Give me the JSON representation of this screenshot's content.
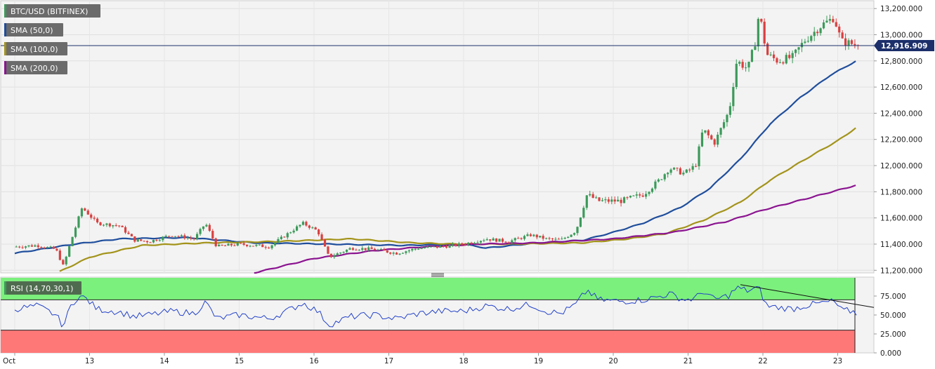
{
  "chart_data": [
    {
      "type": "candlestick",
      "panel": "price",
      "symbol_label": "BTC/USD (BITFINEX)",
      "indicators": [
        {
          "label": "SMA (50,0)",
          "color": "#1f4e9c"
        },
        {
          "label": "SMA (100,0)",
          "color": "#a3931a"
        },
        {
          "label": "SMA (200,0)",
          "color": "#8b1490"
        }
      ],
      "last_price": 12916.909,
      "last_price_label": "12,916.909",
      "y_ticks": [
        "11,200.000",
        "11,400.000",
        "11,600.000",
        "11,800.000",
        "12,000.000",
        "12,200.000",
        "12,400.000",
        "12,600.000",
        "12,800.000",
        "13,000.000",
        "13,200.000"
      ],
      "ylim": [
        11180,
        13260
      ],
      "x_ticks": [
        "Oct",
        "13",
        "14",
        "15",
        "16",
        "17",
        "18",
        "19",
        "20",
        "21",
        "22",
        "23"
      ],
      "xlim_days": [
        12,
        23.3
      ],
      "colors": {
        "up": "#3c9a5a",
        "down": "#d94040",
        "price_line": "#1c2f6b"
      },
      "price_keypoints": [
        [
          12.0,
          11380
        ],
        [
          12.3,
          11390
        ],
        [
          12.55,
          11360
        ],
        [
          12.65,
          11230
        ],
        [
          12.75,
          11420
        ],
        [
          12.9,
          11680
        ],
        [
          13.1,
          11560
        ],
        [
          13.4,
          11540
        ],
        [
          13.6,
          11430
        ],
        [
          13.8,
          11420
        ],
        [
          14.1,
          11470
        ],
        [
          14.4,
          11440
        ],
        [
          14.55,
          11560
        ],
        [
          14.7,
          11380
        ],
        [
          15.0,
          11400
        ],
        [
          15.4,
          11380
        ],
        [
          15.7,
          11500
        ],
        [
          15.85,
          11560
        ],
        [
          16.05,
          11500
        ],
        [
          16.2,
          11300
        ],
        [
          16.5,
          11370
        ],
        [
          16.8,
          11360
        ],
        [
          17.1,
          11330
        ],
        [
          17.4,
          11370
        ],
        [
          17.7,
          11380
        ],
        [
          18.0,
          11400
        ],
        [
          18.3,
          11440
        ],
        [
          18.6,
          11420
        ],
        [
          18.9,
          11470
        ],
        [
          19.1,
          11440
        ],
        [
          19.3,
          11430
        ],
        [
          19.5,
          11500
        ],
        [
          19.65,
          11780
        ],
        [
          19.8,
          11730
        ],
        [
          20.1,
          11730
        ],
        [
          20.4,
          11780
        ],
        [
          20.6,
          11880
        ],
        [
          20.75,
          11980
        ],
        [
          20.95,
          11940
        ],
        [
          21.1,
          12000
        ],
        [
          21.2,
          12280
        ],
        [
          21.35,
          12170
        ],
        [
          21.55,
          12420
        ],
        [
          21.65,
          12800
        ],
        [
          21.8,
          12740
        ],
        [
          21.9,
          12950
        ],
        [
          21.95,
          13180
        ],
        [
          22.05,
          12850
        ],
        [
          22.2,
          12800
        ],
        [
          22.4,
          12830
        ],
        [
          22.55,
          12950
        ],
        [
          22.8,
          13080
        ],
        [
          22.95,
          13130
        ],
        [
          23.05,
          12950
        ],
        [
          23.2,
          12930
        ],
        [
          23.28,
          12917
        ]
      ],
      "sma_keypoints": {
        "sma50": [
          [
            12.0,
            11330
          ],
          [
            12.8,
            11400
          ],
          [
            13.4,
            11440
          ],
          [
            14.3,
            11450
          ],
          [
            15.2,
            11410
          ],
          [
            16.2,
            11400
          ],
          [
            17.2,
            11390
          ],
          [
            18.0,
            11400
          ],
          [
            18.3,
            11370
          ],
          [
            19.0,
            11410
          ],
          [
            19.6,
            11430
          ],
          [
            20.0,
            11490
          ],
          [
            20.4,
            11560
          ],
          [
            20.9,
            11680
          ],
          [
            21.3,
            11830
          ],
          [
            21.7,
            12050
          ],
          [
            22.1,
            12320
          ],
          [
            22.5,
            12520
          ],
          [
            22.9,
            12690
          ],
          [
            23.25,
            12800
          ]
        ],
        "sma100": [
          [
            12.6,
            11190
          ],
          [
            13.0,
            11300
          ],
          [
            13.7,
            11390
          ],
          [
            14.6,
            11410
          ],
          [
            15.5,
            11420
          ],
          [
            16.5,
            11440
          ],
          [
            17.3,
            11410
          ],
          [
            17.9,
            11400
          ],
          [
            18.6,
            11400
          ],
          [
            19.6,
            11410
          ],
          [
            20.2,
            11440
          ],
          [
            20.7,
            11480
          ],
          [
            21.2,
            11580
          ],
          [
            21.7,
            11720
          ],
          [
            22.1,
            11890
          ],
          [
            22.6,
            12060
          ],
          [
            23.0,
            12190
          ],
          [
            23.25,
            12290
          ]
        ],
        "sma200": [
          [
            15.2,
            11180
          ],
          [
            16.0,
            11290
          ],
          [
            16.8,
            11350
          ],
          [
            17.5,
            11380
          ],
          [
            18.2,
            11400
          ],
          [
            19.0,
            11410
          ],
          [
            20.0,
            11440
          ],
          [
            20.8,
            11490
          ],
          [
            21.5,
            11570
          ],
          [
            22.0,
            11660
          ],
          [
            22.6,
            11750
          ],
          [
            23.25,
            11850
          ]
        ]
      }
    },
    {
      "type": "line",
      "panel": "rsi",
      "indicator_label": "RSI (14,70,30,1)",
      "y_ticks": [
        "0.000",
        "25.000",
        "50.000",
        "75.000"
      ],
      "ylim": [
        0,
        100
      ],
      "overbought": 70,
      "oversold": 30,
      "zone_colors": {
        "overbought": "#7cf07c",
        "oversold": "#ff7878",
        "line": "#2342c8",
        "trendline": "#111111"
      },
      "rsi_keypoints": [
        [
          12.0,
          58
        ],
        [
          12.3,
          62
        ],
        [
          12.55,
          50
        ],
        [
          12.65,
          35
        ],
        [
          12.75,
          62
        ],
        [
          12.85,
          75
        ],
        [
          12.95,
          72
        ],
        [
          13.1,
          58
        ],
        [
          13.4,
          54
        ],
        [
          13.6,
          48
        ],
        [
          13.8,
          50
        ],
        [
          14.1,
          55
        ],
        [
          14.4,
          52
        ],
        [
          14.55,
          67
        ],
        [
          14.7,
          45
        ],
        [
          15.0,
          50
        ],
        [
          15.4,
          45
        ],
        [
          15.7,
          58
        ],
        [
          15.85,
          66
        ],
        [
          16.05,
          55
        ],
        [
          16.2,
          37
        ],
        [
          16.5,
          48
        ],
        [
          16.8,
          50
        ],
        [
          17.1,
          45
        ],
        [
          17.4,
          52
        ],
        [
          17.7,
          55
        ],
        [
          18.0,
          55
        ],
        [
          18.3,
          62
        ],
        [
          18.6,
          58
        ],
        [
          18.9,
          64
        ],
        [
          19.1,
          55
        ],
        [
          19.3,
          52
        ],
        [
          19.5,
          64
        ],
        [
          19.65,
          83
        ],
        [
          19.8,
          70
        ],
        [
          20.1,
          68
        ],
        [
          20.4,
          70
        ],
        [
          20.6,
          74
        ],
        [
          20.75,
          78
        ],
        [
          20.95,
          70
        ],
        [
          21.1,
          72
        ],
        [
          21.2,
          82
        ],
        [
          21.35,
          70
        ],
        [
          21.55,
          76
        ],
        [
          21.65,
          86
        ],
        [
          21.8,
          82
        ],
        [
          21.9,
          85
        ],
        [
          21.95,
          85
        ],
        [
          22.05,
          62
        ],
        [
          22.2,
          60
        ],
        [
          22.4,
          58
        ],
        [
          22.55,
          62
        ],
        [
          22.8,
          66
        ],
        [
          22.95,
          68
        ],
        [
          23.05,
          56
        ],
        [
          23.2,
          55
        ],
        [
          23.28,
          50
        ]
      ]
    }
  ]
}
